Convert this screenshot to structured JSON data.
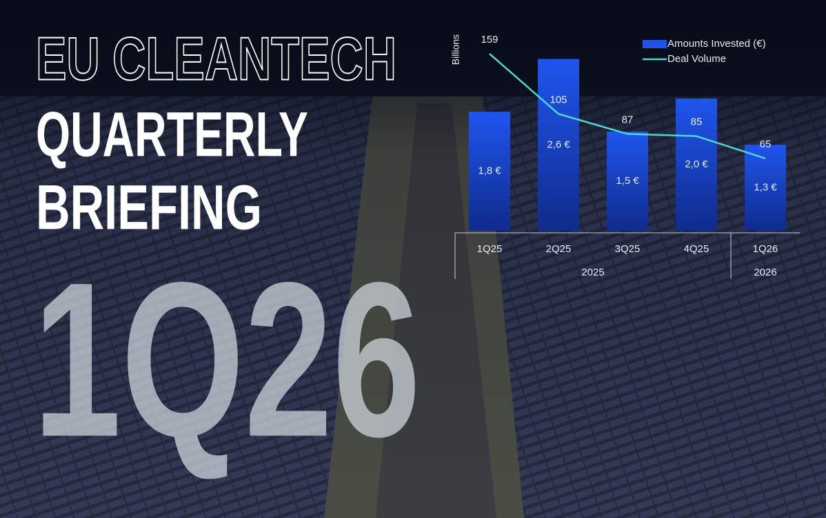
{
  "headline": {
    "line1": "EU CLEANTECH",
    "line2": "QUARTERLY",
    "line3": "BRIEFING",
    "period": "1Q26"
  },
  "chart_data": {
    "type": "bar_line",
    "y_axis_label": "Billions",
    "categories": [
      "1Q25",
      "2Q25",
      "3Q25",
      "4Q25",
      "1Q26"
    ],
    "x_groups": [
      "2025",
      "2026"
    ],
    "series": [
      {
        "name": "Amounts Invested (€)",
        "color": "#1f52e6",
        "values": [
          1.8,
          2.6,
          1.5,
          2.0,
          1.3
        ],
        "value_labels": [
          "1,8 €",
          "2,6 €",
          "1,5 €",
          "2,0 €",
          "1,3 €"
        ]
      },
      {
        "name": "Deal Volume",
        "color": "#4fd8d2",
        "axis": "y2",
        "values": [
          159,
          105,
          87,
          85,
          65
        ]
      }
    ],
    "ylim": [
      0,
      3.2
    ],
    "y2lim": [
      0,
      190
    ],
    "legend": "top-right"
  }
}
